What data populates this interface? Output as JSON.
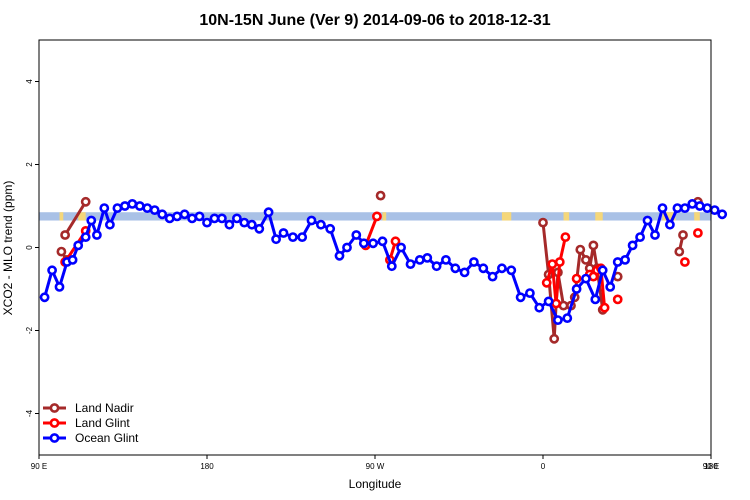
{
  "chart_data": {
    "type": "line",
    "title": "10N-15N June (Ver 9)   2014-09-06 to 2018-12-31",
    "xlabel": "Longitude",
    "ylabel": "XCO2 - MLO trend (ppm)",
    "xlim": [
      90,
      450
    ],
    "ylim": [
      -5,
      5
    ],
    "x_ticks": [
      {
        "value": 90,
        "label": "90 E"
      },
      {
        "value": 180,
        "label": "180"
      },
      {
        "value": 270,
        "label": "90 W"
      },
      {
        "value": 360,
        "label": "0"
      },
      {
        "value": 450,
        "label": "90 E"
      },
      {
        "value": 540,
        "label": "180"
      }
    ],
    "y_ticks": [
      -4,
      -2,
      0,
      2,
      4
    ],
    "grid": false,
    "legend_position": "bottom-left",
    "land_band": {
      "y_range": [
        0.65,
        0.85
      ],
      "ocean_color": "#A9C1E6",
      "land_color": "#F5D77A",
      "land_segments": [
        [
          101,
          103
        ],
        [
          111,
          115
        ],
        [
          274,
          276
        ],
        [
          343,
          338
        ],
        [
          374,
          371
        ],
        [
          388,
          392
        ],
        [
          424,
          431
        ],
        [
          441,
          444
        ]
      ]
    },
    "series": [
      {
        "name": "Land Nadir",
        "color": "#A52A2A",
        "segments": [
          [
            [
              104,
              0.3
            ],
            [
              115,
              1.1
            ]
          ],
          [
            [
              102,
              -0.1
            ],
            [
              105,
              -0.3
            ]
          ],
          [
            [
              273,
              1.25
            ]
          ],
          [
            [
              360,
              0.6
            ],
            [
              363,
              -0.65
            ],
            [
              366,
              -2.2
            ],
            [
              368,
              -0.6
            ],
            [
              371,
              -1.4
            ],
            [
              375,
              -1.4
            ],
            [
              377,
              -1.2
            ],
            [
              380,
              -0.05
            ],
            [
              383,
              -0.3
            ],
            [
              385,
              -0.5
            ],
            [
              387,
              0.05
            ],
            [
              389,
              -0.5
            ],
            [
              392,
              -1.5
            ]
          ],
          [
            [
              400,
              -0.7
            ]
          ],
          [
            [
              433,
              -0.1
            ],
            [
              435,
              0.3
            ]
          ],
          [
            [
              443,
              1.1
            ]
          ]
        ]
      },
      {
        "name": "Land Glint",
        "color": "#FF0000",
        "segments": [
          [
            [
              104,
              -0.35
            ],
            [
              115,
              0.4
            ]
          ],
          [
            [
              265,
              0.05
            ],
            [
              271,
              0.75
            ]
          ],
          [
            [
              278,
              -0.3
            ],
            [
              281,
              0.15
            ]
          ],
          [
            [
              362,
              -0.85
            ],
            [
              365,
              -0.4
            ],
            [
              367,
              -1.35
            ],
            [
              369,
              -0.35
            ],
            [
              372,
              0.25
            ]
          ],
          [
            [
              378,
              -0.75
            ]
          ],
          [
            [
              385,
              -0.65
            ],
            [
              387,
              -0.7
            ],
            [
              389,
              -0.55
            ],
            [
              391,
              -0.5
            ],
            [
              393,
              -1.45
            ]
          ],
          [
            [
              400,
              -1.25
            ]
          ],
          [
            [
              436,
              -0.35
            ]
          ],
          [
            [
              443,
              0.35
            ]
          ]
        ]
      },
      {
        "name": "Ocean Glint",
        "color": "#0000FF",
        "segments": [
          [
            [
              93,
              -1.2
            ],
            [
              97,
              -0.55
            ],
            [
              101,
              -0.95
            ],
            [
              105,
              -0.35
            ],
            [
              108,
              -0.3
            ],
            [
              111,
              0.05
            ],
            [
              115,
              0.25
            ],
            [
              118,
              0.65
            ],
            [
              121,
              0.3
            ],
            [
              125,
              0.95
            ],
            [
              128,
              0.55
            ],
            [
              132,
              0.95
            ],
            [
              136,
              1.0
            ],
            [
              140,
              1.05
            ],
            [
              144,
              1.0
            ],
            [
              148,
              0.95
            ],
            [
              152,
              0.9
            ],
            [
              156,
              0.8
            ],
            [
              160,
              0.7
            ],
            [
              164,
              0.75
            ],
            [
              168,
              0.8
            ],
            [
              172,
              0.7
            ],
            [
              176,
              0.75
            ],
            [
              180,
              0.6
            ],
            [
              184,
              0.7
            ],
            [
              188,
              0.7
            ],
            [
              192,
              0.55
            ],
            [
              196,
              0.7
            ],
            [
              200,
              0.6
            ],
            [
              204,
              0.55
            ],
            [
              208,
              0.45
            ],
            [
              213,
              0.85
            ],
            [
              217,
              0.2
            ],
            [
              221,
              0.35
            ],
            [
              226,
              0.25
            ],
            [
              231,
              0.25
            ],
            [
              236,
              0.65
            ],
            [
              241,
              0.55
            ],
            [
              246,
              0.45
            ],
            [
              251,
              -0.2
            ],
            [
              255,
              0.0
            ],
            [
              260,
              0.3
            ],
            [
              264,
              0.1
            ],
            [
              269,
              0.1
            ],
            [
              274,
              0.15
            ],
            [
              279,
              -0.45
            ],
            [
              284,
              0.0
            ],
            [
              289,
              -0.4
            ],
            [
              294,
              -0.3
            ],
            [
              298,
              -0.25
            ],
            [
              303,
              -0.45
            ],
            [
              308,
              -0.3
            ],
            [
              313,
              -0.5
            ],
            [
              318,
              -0.6
            ],
            [
              323,
              -0.35
            ],
            [
              328,
              -0.5
            ],
            [
              333,
              -0.7
            ],
            [
              338,
              -0.5
            ],
            [
              343,
              -0.55
            ],
            [
              348,
              -1.2
            ],
            [
              353,
              -1.1
            ],
            [
              358,
              -1.45
            ],
            [
              363,
              -1.3
            ],
            [
              368,
              -1.75
            ],
            [
              373,
              -1.7
            ],
            [
              378,
              -1.0
            ],
            [
              383,
              -0.75
            ],
            [
              388,
              -1.25
            ],
            [
              392,
              -0.55
            ],
            [
              396,
              -0.95
            ],
            [
              400,
              -0.35
            ],
            [
              404,
              -0.3
            ],
            [
              408,
              0.05
            ],
            [
              412,
              0.25
            ],
            [
              416,
              0.65
            ],
            [
              420,
              0.3
            ],
            [
              424,
              0.95
            ],
            [
              428,
              0.55
            ],
            [
              432,
              0.95
            ],
            [
              436,
              0.95
            ],
            [
              440,
              1.05
            ],
            [
              444,
              1.0
            ],
            [
              448,
              0.95
            ],
            [
              452,
              0.9
            ],
            [
              456,
              0.8
            ]
          ]
        ]
      }
    ]
  }
}
